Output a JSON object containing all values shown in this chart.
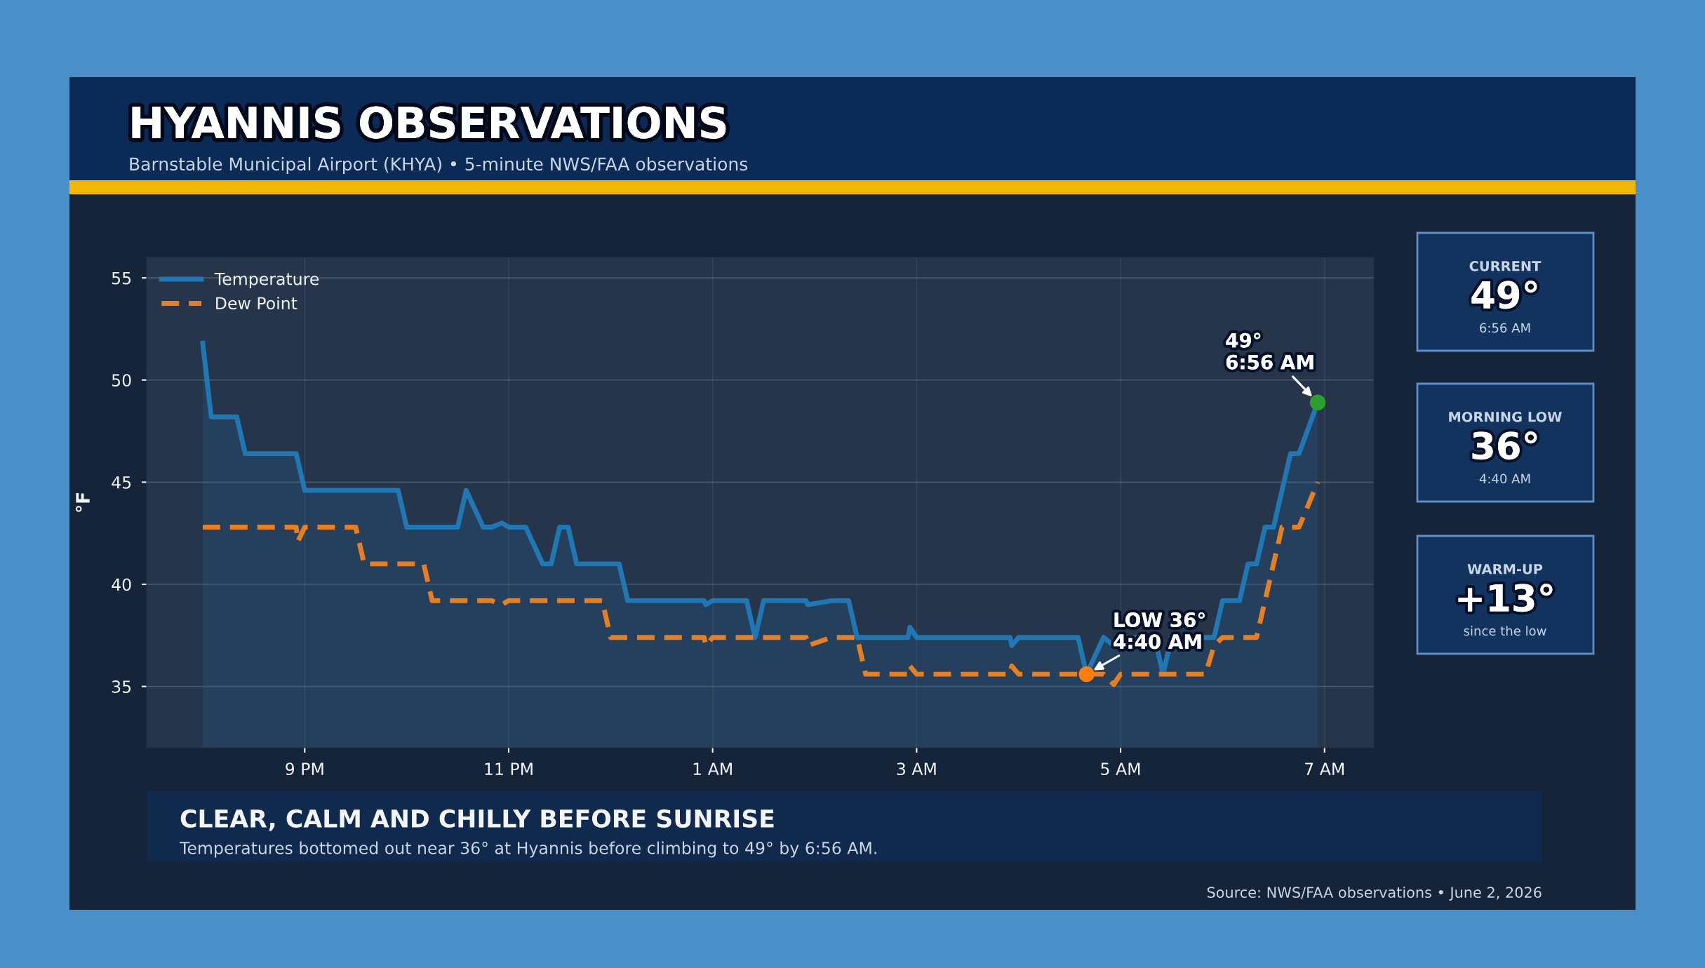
{
  "chart_data": [
    {
      "type": "line",
      "title": "HYANNIS OBSERVATIONS",
      "subtitle": "Barnstable Municipal Airport (KHYA) • 5-minute NWS/FAA observations",
      "ylabel": "°F",
      "annotations": [
        "CLEAR, CALM AND CHILLY BEFORE SUNRISE",
        "Temperatures bottomed out near 36° at Hyannis before climbing to 49° by 6:56 AM.",
        "Source: NWS/FAA observations • June 2, 2026",
        {
          "text": "LOW 36°\n4:40 AM",
          "x": "2026-06-02T04:40",
          "y": 35.6
        },
        {
          "text": "49°\n6:56 AM",
          "x": "2026-06-02T06:56",
          "y": 48.9
        }
      ],
      "xlim": [
        "2026-06-01T19:27",
        "2026-06-02T07:29"
      ],
      "xticks": [
        {
          "value": "2026-06-01T21:00",
          "label": "9 PM"
        },
        {
          "value": "2026-06-01T23:00",
          "label": "11 PM"
        },
        {
          "value": "2026-06-02T01:00",
          "label": "1 AM"
        },
        {
          "value": "2026-06-02T03:00",
          "label": "3 AM"
        },
        {
          "value": "2026-06-02T05:00",
          "label": "5 AM"
        },
        {
          "value": "2026-06-02T07:00",
          "label": "7 AM"
        }
      ],
      "ylim": [
        32,
        56
      ],
      "yticks": [
        35,
        40,
        45,
        50,
        55
      ],
      "grid": true,
      "legend": "top left",
      "marker": "none",
      "series": [
        {
          "name": "Temperature",
          "type": "area",
          "color": "#1f77b4",
          "line_style": "solid",
          "x": [
            "2026-06-01T20:00",
            "2026-06-01T20:05",
            "2026-06-01T20:20",
            "2026-06-01T20:25",
            "2026-06-01T20:55",
            "2026-06-01T21:00",
            "2026-06-01T21:55",
            "2026-06-01T22:00",
            "2026-06-01T22:30",
            "2026-06-01T22:35",
            "2026-06-01T22:45",
            "2026-06-01T22:50",
            "2026-06-01T22:56",
            "2026-06-01T23:00",
            "2026-06-01T23:10",
            "2026-06-01T23:20",
            "2026-06-01T23:25",
            "2026-06-01T23:30",
            "2026-06-01T23:35",
            "2026-06-01T23:40",
            "2026-06-02T00:05",
            "2026-06-02T00:10",
            "2026-06-02T00:55",
            "2026-06-02T00:56",
            "2026-06-02T01:00",
            "2026-06-02T01:20",
            "2026-06-02T01:25",
            "2026-06-02T01:30",
            "2026-06-02T01:55",
            "2026-06-02T01:56",
            "2026-06-02T02:10",
            "2026-06-02T02:20",
            "2026-06-02T02:25",
            "2026-06-02T02:55",
            "2026-06-02T02:56",
            "2026-06-02T03:00",
            "2026-06-02T03:55",
            "2026-06-02T03:56",
            "2026-06-02T04:00",
            "2026-06-02T04:35",
            "2026-06-02T04:40",
            "2026-06-02T04:50",
            "2026-06-02T04:56",
            "2026-06-02T05:00",
            "2026-06-02T05:20",
            "2026-06-02T05:25",
            "2026-06-02T05:30",
            "2026-06-02T05:55",
            "2026-06-02T06:00",
            "2026-06-02T06:10",
            "2026-06-02T06:15",
            "2026-06-02T06:20",
            "2026-06-02T06:25",
            "2026-06-02T06:30",
            "2026-06-02T06:40",
            "2026-06-02T06:45",
            "2026-06-02T06:56"
          ],
          "values": [
            51.8,
            48.2,
            48.2,
            46.4,
            46.4,
            44.6,
            44.6,
            42.8,
            42.8,
            44.6,
            42.8,
            42.8,
            43.0,
            42.8,
            42.8,
            41.0,
            41.0,
            42.8,
            42.8,
            41.0,
            41.0,
            39.2,
            39.2,
            39.0,
            39.2,
            39.2,
            37.4,
            39.2,
            39.2,
            39.0,
            39.2,
            39.2,
            37.4,
            37.4,
            37.9,
            37.4,
            37.4,
            37.0,
            37.4,
            37.4,
            35.6,
            37.4,
            37.0,
            37.4,
            37.4,
            35.6,
            37.4,
            37.4,
            39.2,
            39.2,
            41.0,
            41.0,
            42.8,
            42.8,
            46.4,
            46.4,
            48.9
          ]
        },
        {
          "name": "Dew Point",
          "type": "line",
          "color": "#e67e22",
          "line_style": "dashed",
          "x": [
            "2026-06-01T20:00",
            "2026-06-01T20:55",
            "2026-06-01T20:56",
            "2026-06-01T21:00",
            "2026-06-01T21:30",
            "2026-06-01T21:35",
            "2026-06-01T22:10",
            "2026-06-01T22:15",
            "2026-06-01T22:50",
            "2026-06-01T22:56",
            "2026-06-01T23:00",
            "2026-06-01T23:55",
            "2026-06-02T00:00",
            "2026-06-02T00:55",
            "2026-06-02T00:56",
            "2026-06-02T01:00",
            "2026-06-02T01:55",
            "2026-06-02T01:56",
            "2026-06-02T02:10",
            "2026-06-02T02:25",
            "2026-06-02T02:30",
            "2026-06-02T02:55",
            "2026-06-02T02:56",
            "2026-06-02T03:00",
            "2026-06-02T03:55",
            "2026-06-02T03:56",
            "2026-06-02T04:00",
            "2026-06-02T04:50",
            "2026-06-02T04:56",
            "2026-06-02T05:00",
            "2026-06-02T05:50",
            "2026-06-02T05:55",
            "2026-06-02T06:00",
            "2026-06-02T06:20",
            "2026-06-02T06:35",
            "2026-06-02T06:45",
            "2026-06-02T06:56"
          ],
          "values": [
            42.8,
            42.8,
            42.1,
            42.8,
            42.8,
            41.0,
            41.0,
            39.2,
            39.2,
            39.0,
            39.2,
            39.2,
            37.4,
            37.4,
            37.0,
            37.4,
            37.4,
            37.0,
            37.4,
            37.4,
            35.6,
            35.6,
            36.0,
            35.6,
            35.6,
            36.0,
            35.6,
            35.6,
            35.1,
            35.6,
            35.6,
            37.0,
            37.4,
            37.4,
            42.8,
            42.8,
            45.0
          ]
        },
        {
          "type": "scatter",
          "x": [
            "2026-06-02T04:40",
            "2026-06-02T06:56"
          ],
          "values": [
            35.6,
            48.9
          ],
          "colors": [
            "#ff7f0e",
            "#2ca02c"
          ],
          "marker": "circle"
        }
      ]
    },
    {
      "type": "other",
      "annotations": [
        "CURRENT",
        "49°",
        "6:56 AM",
        "MORNING LOW",
        "36°",
        "4:40 AM",
        "WARM-UP",
        "+13°",
        "since the low"
      ]
    }
  ]
}
